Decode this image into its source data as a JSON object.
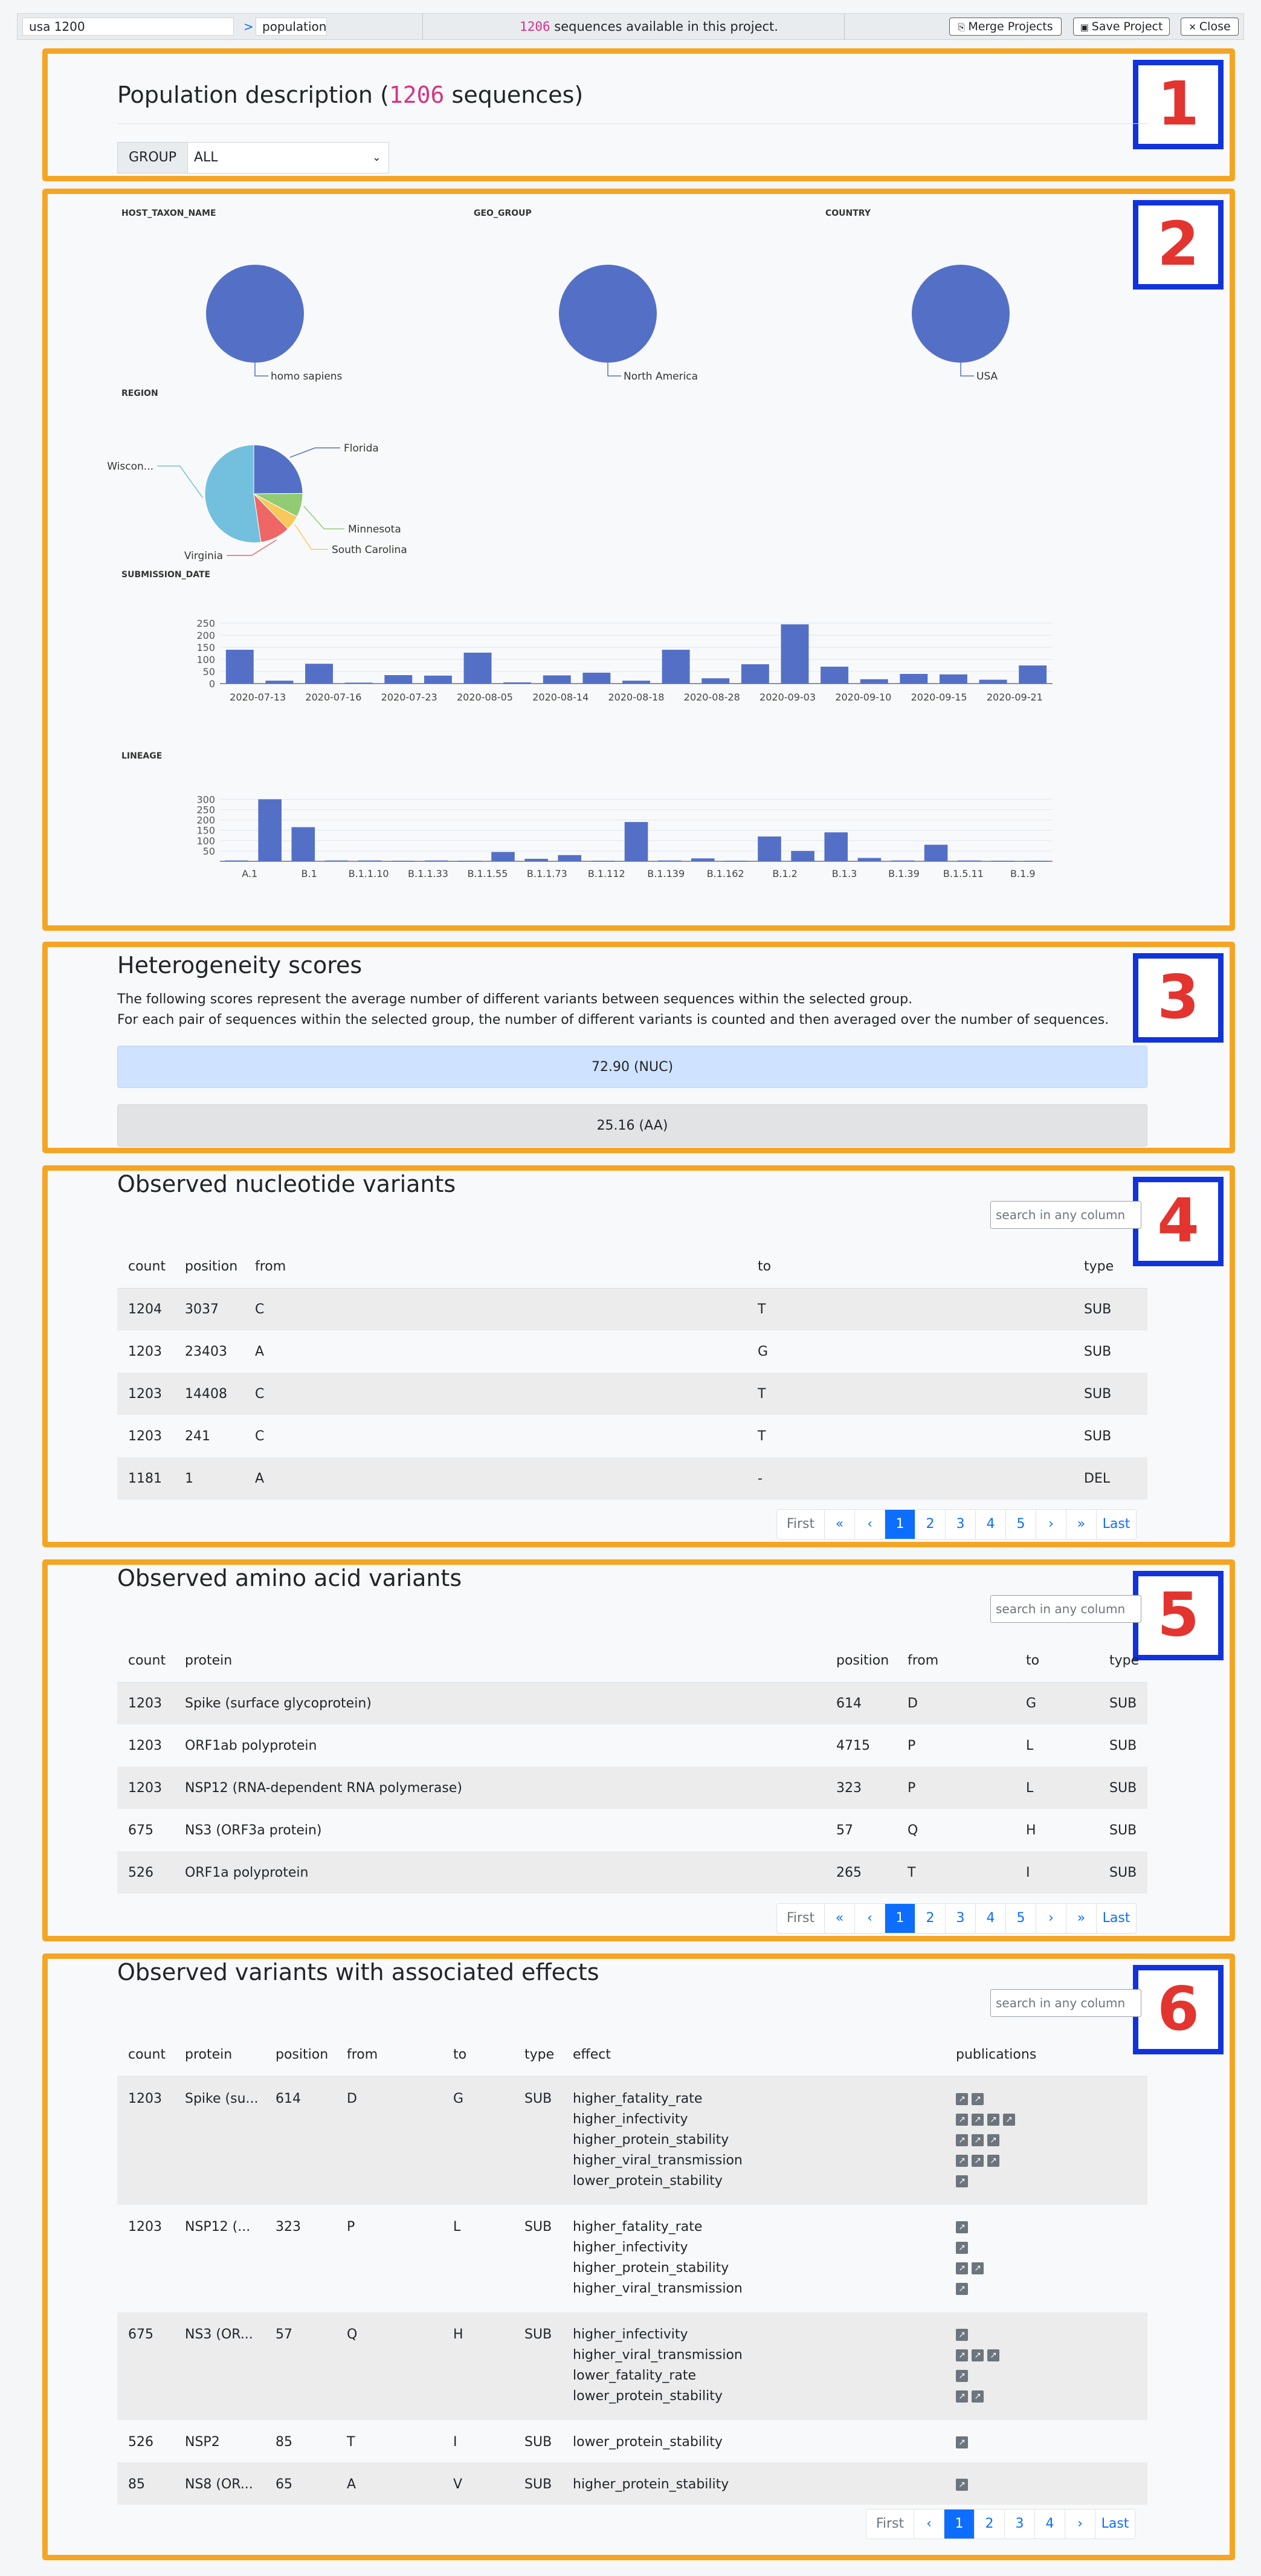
{
  "topbar": {
    "search_value": "usa  1200",
    "breadcrumb_sep": ">",
    "breadcrumb_item": "population",
    "count": "1206",
    "info_text": " sequences available in this project.",
    "merge_label": "Merge Projects",
    "save_label": "Save Project",
    "close_label": "Close"
  },
  "badges": [
    "1",
    "2",
    "3",
    "4",
    "5",
    "6"
  ],
  "population": {
    "title_pre": "Population description (",
    "count": "1206",
    "title_post": " sequences)",
    "group_label": "GROUP",
    "group_value": "ALL"
  },
  "charts": {
    "host_label": "HOST_TAXON_NAME",
    "geo_label": "GEO_GROUP",
    "country_label": "COUNTRY",
    "region_label": "REGION",
    "submission_label": "SUBMISSION_DATE",
    "lineage_label": "LINEAGE"
  },
  "chart_data": [
    {
      "type": "pie",
      "title": "HOST_TAXON_NAME",
      "labels": [
        "homo sapiens"
      ],
      "values": [
        1206
      ],
      "colors": [
        "#5470c6"
      ]
    },
    {
      "type": "pie",
      "title": "GEO_GROUP",
      "labels": [
        "North America"
      ],
      "values": [
        1206
      ],
      "colors": [
        "#5470c6"
      ]
    },
    {
      "type": "pie",
      "title": "COUNTRY",
      "labels": [
        "USA"
      ],
      "values": [
        1206
      ],
      "colors": [
        "#5470c6"
      ]
    },
    {
      "type": "pie",
      "title": "REGION",
      "labels": [
        "Florida",
        "Minnesota",
        "South Carolina",
        "Virginia",
        "Wiscon..."
      ],
      "values": [
        300,
        95,
        60,
        120,
        631
      ],
      "colors": [
        "#5470c6",
        "#91cc75",
        "#fac858",
        "#ee6666",
        "#73c0de"
      ]
    },
    {
      "type": "bar",
      "title": "SUBMISSION_DATE",
      "yticks": [
        0,
        50,
        100,
        150,
        200,
        250
      ],
      "ylim": [
        0,
        260
      ],
      "xtick_labels": [
        "2020-07-13",
        "2020-07-16",
        "2020-07-23",
        "2020-08-05",
        "2020-08-14",
        "2020-08-18",
        "2020-08-28",
        "2020-09-03",
        "2020-09-10",
        "2020-09-15",
        "2020-09-21"
      ],
      "values": [
        140,
        12,
        82,
        4,
        35,
        33,
        128,
        5,
        34,
        45,
        12,
        140,
        22,
        80,
        245,
        70,
        18,
        40,
        38,
        16,
        75
      ],
      "color": "#5470c6"
    },
    {
      "type": "bar",
      "title": "LINEAGE",
      "yticks": [
        50,
        100,
        150,
        200,
        250,
        300
      ],
      "ylim": [
        0,
        310
      ],
      "xtick_labels": [
        "A.1",
        "B.1",
        "B.1.1.10",
        "B.1.1.33",
        "B.1.1.55",
        "B.1.1.73",
        "B.1.112",
        "B.1.139",
        "B.1.162",
        "B.1.2",
        "B.1.3",
        "B.1.39",
        "B.1.5.11",
        "B.1.9"
      ],
      "values": [
        4,
        300,
        165,
        4,
        4,
        3,
        4,
        3,
        45,
        12,
        30,
        3,
        190,
        4,
        14,
        3,
        120,
        50,
        140,
        16,
        4,
        80,
        4,
        3,
        3
      ],
      "color": "#5470c6"
    }
  ],
  "heterogeneity": {
    "title": "Heterogeneity scores",
    "line1": "The following scores represent the average number of different variants between sequences within the selected group.",
    "line2": "For each pair of sequences within the selected group, the number of different variants is counted and then averaged over the number of sequences.",
    "nuc": "72.90 (NUC)",
    "aa": "25.16 (AA)",
    "nuc_color": "#cfe2ff",
    "aa_color": "#e2e3e5"
  },
  "nuc_variants": {
    "title": "Observed nucleotide variants",
    "search_placeholder": "search in any column",
    "headers": [
      "count",
      "position",
      "from",
      "to",
      "type"
    ],
    "rows": [
      [
        "1204",
        "3037",
        "C",
        "T",
        "SUB"
      ],
      [
        "1203",
        "23403",
        "A",
        "G",
        "SUB"
      ],
      [
        "1203",
        "14408",
        "C",
        "T",
        "SUB"
      ],
      [
        "1203",
        "241",
        "C",
        "T",
        "SUB"
      ],
      [
        "1181",
        "1",
        "A",
        "-",
        "DEL"
      ]
    ],
    "pager": [
      "First",
      "«",
      "‹",
      "1",
      "2",
      "3",
      "4",
      "5",
      "›",
      "»",
      "Last"
    ]
  },
  "aa_variants": {
    "title": "Observed amino acid variants",
    "search_placeholder": "search in any column",
    "headers": [
      "count",
      "protein",
      "position",
      "from",
      "to",
      "type"
    ],
    "rows": [
      [
        "1203",
        "Spike (surface glycoprotein)",
        "614",
        "D",
        "G",
        "SUB"
      ],
      [
        "1203",
        "ORF1ab polyprotein",
        "4715",
        "P",
        "L",
        "SUB"
      ],
      [
        "1203",
        "NSP12 (RNA-dependent RNA polymerase)",
        "323",
        "P",
        "L",
        "SUB"
      ],
      [
        "675",
        "NS3 (ORF3a protein)",
        "57",
        "Q",
        "H",
        "SUB"
      ],
      [
        "526",
        "ORF1a polyprotein",
        "265",
        "T",
        "I",
        "SUB"
      ]
    ],
    "pager": [
      "First",
      "«",
      "‹",
      "1",
      "2",
      "3",
      "4",
      "5",
      "›",
      "»",
      "Last"
    ]
  },
  "effects": {
    "title": "Observed variants with associated effects",
    "search_placeholder": "search in any column",
    "headers": [
      "count",
      "protein",
      "position",
      "from",
      "to",
      "type",
      "effect",
      "publications"
    ],
    "rows": [
      {
        "count": "1203",
        "protein": "Spike (su...",
        "position": "614",
        "from": "D",
        "to": "G",
        "type": "SUB",
        "effects": [
          "higher_fatality_rate",
          "higher_infectivity",
          "higher_protein_stability",
          "higher_viral_transmission",
          "lower_protein_stability"
        ],
        "pubs": [
          2,
          4,
          3,
          3,
          1
        ]
      },
      {
        "count": "1203",
        "protein": "NSP12 (...",
        "position": "323",
        "from": "P",
        "to": "L",
        "type": "SUB",
        "effects": [
          "higher_fatality_rate",
          "higher_infectivity",
          "higher_protein_stability",
          "higher_viral_transmission"
        ],
        "pubs": [
          1,
          1,
          2,
          1
        ]
      },
      {
        "count": "675",
        "protein": "NS3 (OR...",
        "position": "57",
        "from": "Q",
        "to": "H",
        "type": "SUB",
        "effects": [
          "higher_infectivity",
          "higher_viral_transmission",
          "lower_fatality_rate",
          "lower_protein_stability"
        ],
        "pubs": [
          1,
          3,
          1,
          2
        ]
      },
      {
        "count": "526",
        "protein": "NSP2",
        "position": "85",
        "from": "T",
        "to": "I",
        "type": "SUB",
        "effects": [
          "lower_protein_stability"
        ],
        "pubs": [
          1
        ]
      },
      {
        "count": "85",
        "protein": "NS8 (OR...",
        "position": "65",
        "from": "A",
        "to": "V",
        "type": "SUB",
        "effects": [
          "higher_protein_stability"
        ],
        "pubs": [
          1
        ]
      }
    ],
    "pager": [
      "First",
      "‹",
      "1",
      "2",
      "3",
      "4",
      "›",
      "Last"
    ]
  }
}
